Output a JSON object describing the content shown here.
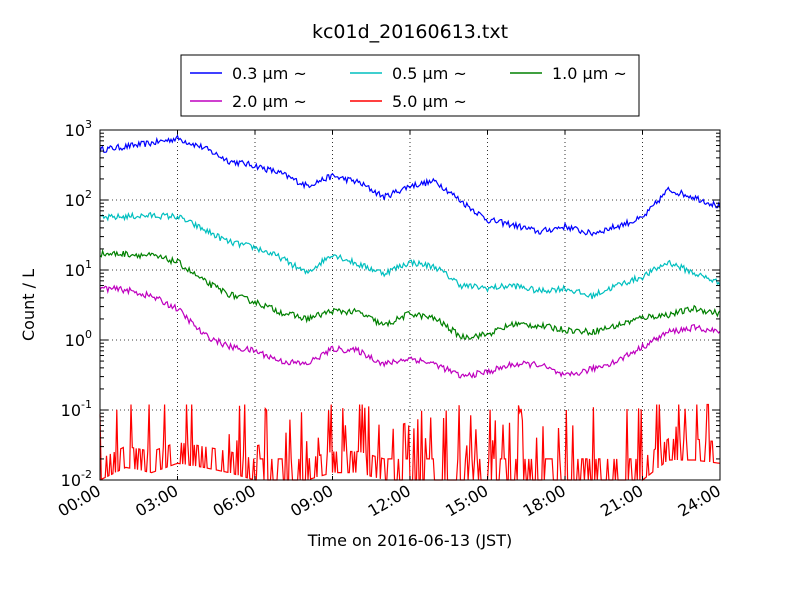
{
  "chart_data": {
    "type": "line",
    "title": "kc01d_20160613.txt",
    "xlabel": "Time on 2016-06-13 (JST)",
    "ylabel": "Count / L",
    "yscale": "log",
    "xlim": [
      "00:00",
      "24:00"
    ],
    "ylim": [
      0.01,
      1000
    ],
    "grid": true,
    "legend_position": "top-center",
    "x_ticks": [
      "00:00",
      "03:00",
      "06:00",
      "09:00",
      "12:00",
      "15:00",
      "18:00",
      "21:00",
      "24:00"
    ],
    "y_ticks": [
      {
        "base": "10",
        "exp": "-2",
        "value": 0.01
      },
      {
        "base": "10",
        "exp": "-1",
        "value": 0.1
      },
      {
        "base": "10",
        "exp": "0",
        "value": 1
      },
      {
        "base": "10",
        "exp": "1",
        "value": 10
      },
      {
        "base": "10",
        "exp": "2",
        "value": 100
      },
      {
        "base": "10",
        "exp": "3",
        "value": 1000
      }
    ],
    "x": [
      "00:00",
      "01:00",
      "02:00",
      "03:00",
      "04:00",
      "05:00",
      "06:00",
      "07:00",
      "08:00",
      "09:00",
      "10:00",
      "11:00",
      "12:00",
      "13:00",
      "14:00",
      "15:00",
      "16:00",
      "17:00",
      "18:00",
      "19:00",
      "20:00",
      "21:00",
      "22:00",
      "23:00",
      "24:00"
    ],
    "series": [
      {
        "name": "0.3 μm ~",
        "color": "#0000ff",
        "values": [
          520,
          580,
          650,
          760,
          560,
          360,
          310,
          240,
          160,
          220,
          180,
          110,
          160,
          185,
          95,
          52,
          44,
          35,
          42,
          33,
          42,
          55,
          140,
          110,
          80
        ]
      },
      {
        "name": "0.5 μm ~",
        "color": "#00bfbf",
        "values": [
          55,
          58,
          60,
          58,
          38,
          25,
          21,
          15,
          9,
          17,
          12,
          9,
          13,
          11,
          6,
          5.5,
          6,
          5,
          5.5,
          4.2,
          6,
          8,
          13,
          9,
          6.5
        ]
      },
      {
        "name": "1.0 μm ~",
        "color": "#008000",
        "values": [
          17,
          17,
          16,
          13,
          7,
          4.5,
          3.5,
          2.5,
          2,
          2.6,
          2.5,
          1.6,
          2.4,
          2,
          1.1,
          1.2,
          1.7,
          1.6,
          1.4,
          1.3,
          1.6,
          2.1,
          2.3,
          2.8,
          2.4
        ]
      },
      {
        "name": "2.0 μm ~",
        "color": "#bf00bf",
        "values": [
          5.5,
          5.2,
          4.2,
          2.8,
          1.2,
          0.8,
          0.7,
          0.5,
          0.45,
          0.75,
          0.7,
          0.45,
          0.55,
          0.45,
          0.3,
          0.35,
          0.45,
          0.45,
          0.3,
          0.38,
          0.5,
          0.8,
          1.3,
          1.5,
          1.3
        ]
      },
      {
        "name": "5.0 μm ~",
        "color": "#ff0000",
        "values": [
          0.02,
          0.04,
          0.03,
          0.05,
          0.04,
          0.03,
          0.02,
          0.02,
          0.02,
          0.03,
          0.03,
          0.02,
          0.02,
          0.02,
          0.02,
          0.02,
          0.02,
          0.02,
          0.02,
          0.02,
          0.02,
          0.02,
          0.06,
          0.06,
          0.05
        ]
      }
    ]
  }
}
